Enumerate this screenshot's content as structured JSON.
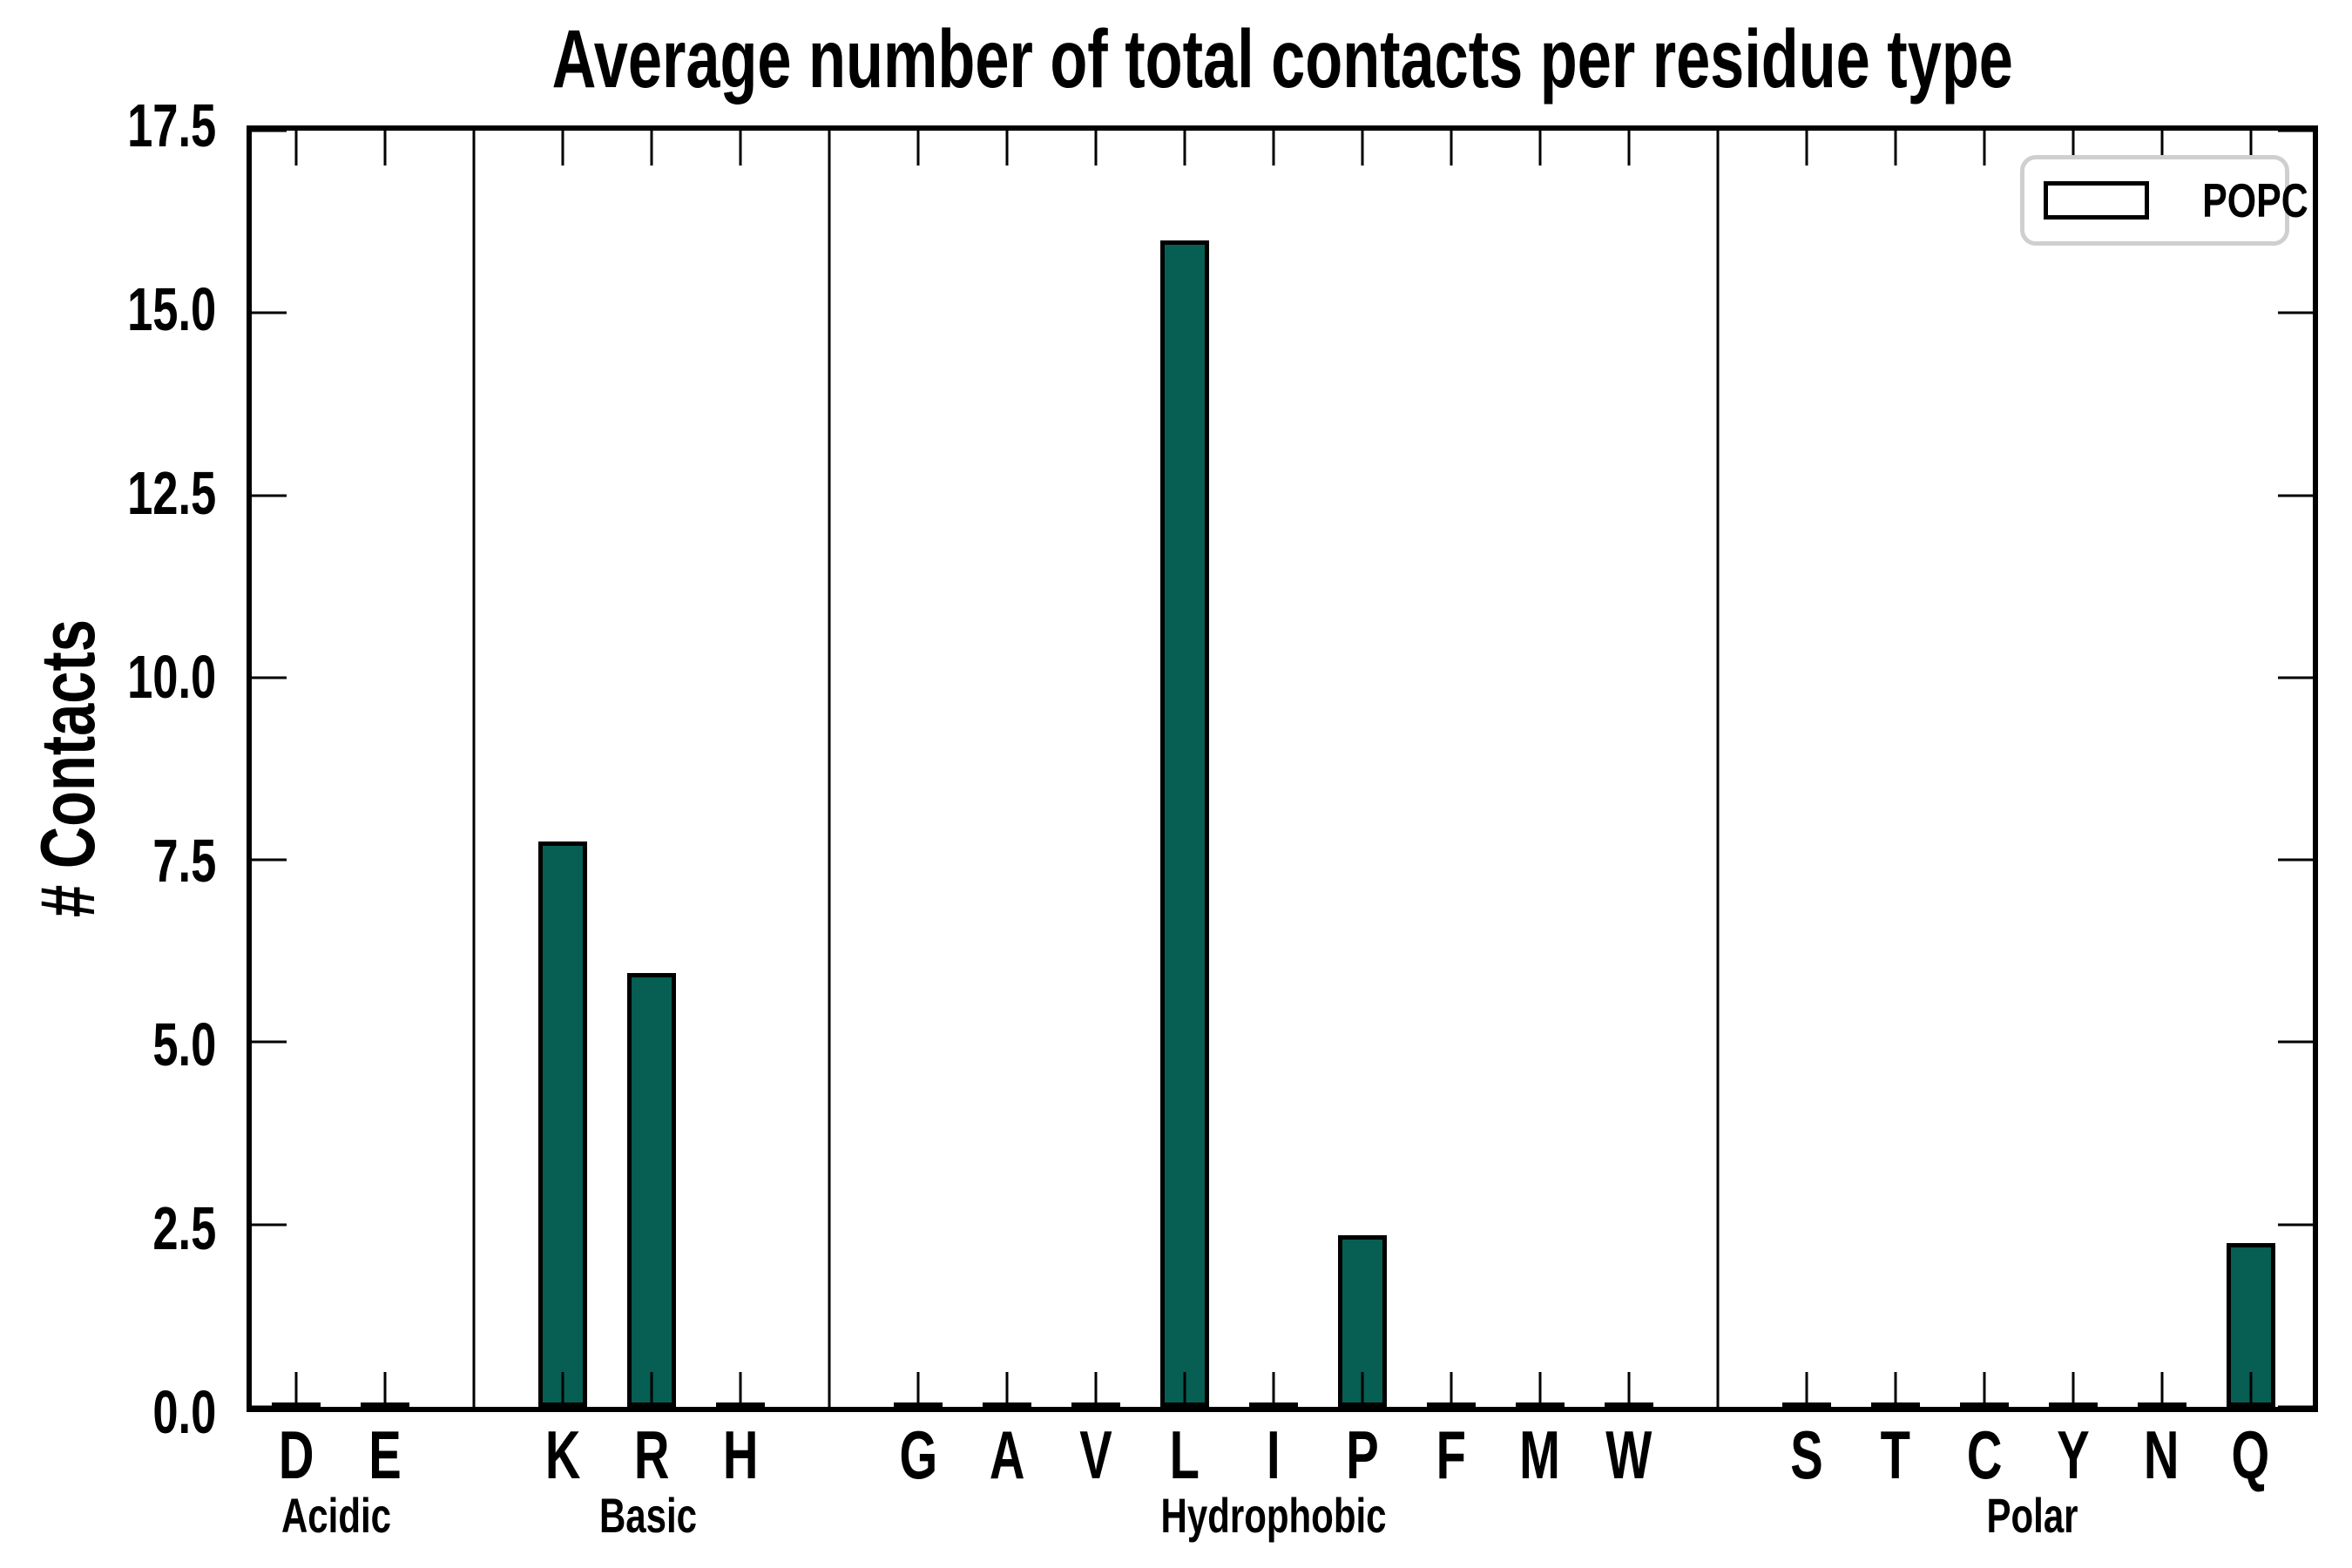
{
  "chart_data": {
    "type": "bar",
    "title": "Average number of total contacts per residue type",
    "xlabel": "",
    "ylabel": "# Contacts",
    "ylim": [
      0,
      17.5
    ],
    "yticks": [
      "0.0",
      "2.5",
      "5.0",
      "7.5",
      "10.0",
      "12.5",
      "15.0",
      "17.5"
    ],
    "grid": "off",
    "legend": {
      "label": "POPC",
      "position": "upper right"
    },
    "colors": {
      "bar_fill": "#075e53",
      "bar_edge": "#000000",
      "axis": "#000000",
      "legend_border": "#cfcfcf"
    },
    "series_name": "POPC",
    "groups": [
      {
        "label": "Acidic",
        "categories": [
          "D",
          "E"
        ],
        "values": [
          0,
          0
        ]
      },
      {
        "label": "Basic",
        "categories": [
          "K",
          "R",
          "H"
        ],
        "values": [
          7.75,
          5.95,
          0
        ]
      },
      {
        "label": "Hydrophobic",
        "categories": [
          "G",
          "A",
          "V",
          "L",
          "I",
          "P",
          "F",
          "M",
          "W"
        ],
        "values": [
          0,
          0,
          0,
          16.0,
          0,
          2.35,
          0,
          0,
          0
        ]
      },
      {
        "label": "Polar",
        "categories": [
          "S",
          "T",
          "C",
          "Y",
          "N",
          "Q"
        ],
        "values": [
          0,
          0,
          0,
          0,
          0,
          2.25
        ]
      }
    ],
    "categories": [
      "D",
      "E",
      "K",
      "R",
      "H",
      "G",
      "A",
      "V",
      "L",
      "I",
      "P",
      "F",
      "M",
      "W",
      "S",
      "T",
      "C",
      "Y",
      "N",
      "Q"
    ],
    "values": [
      0,
      0,
      7.75,
      5.95,
      0,
      0,
      0,
      0,
      16.0,
      0,
      2.35,
      0,
      0,
      0,
      0,
      0,
      0,
      0,
      0,
      2.25
    ]
  }
}
